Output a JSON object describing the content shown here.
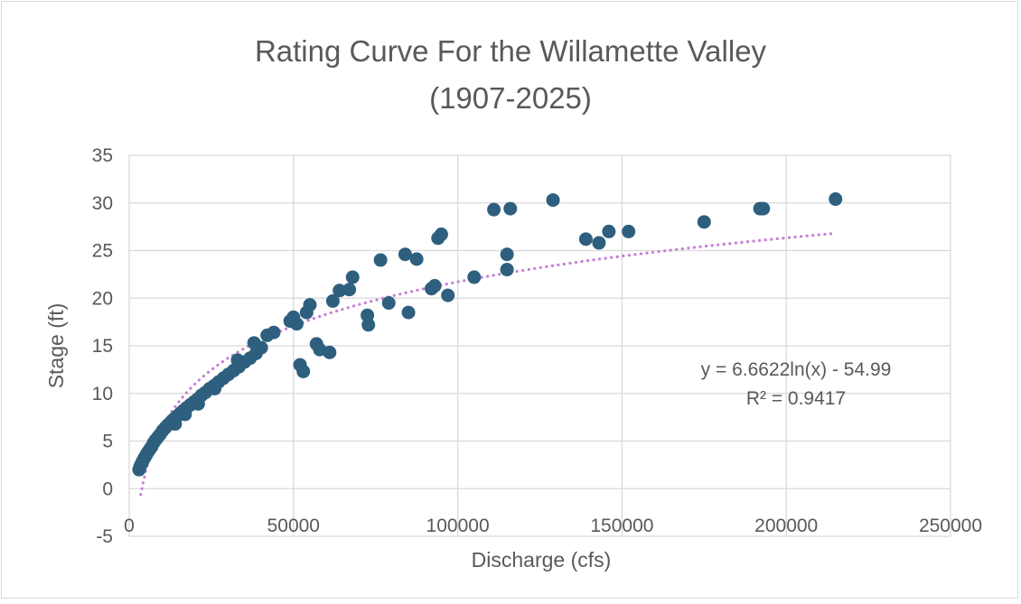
{
  "chart_data": {
    "type": "scatter",
    "title": [
      "Rating Curve For the Willamette Valley",
      "(1907-2025)"
    ],
    "xlabel": "Discharge (cfs)",
    "ylabel": "Stage (ft)",
    "xlim": [
      0,
      250000
    ],
    "ylim": [
      -5,
      35
    ],
    "xticks": [
      0,
      50000,
      100000,
      150000,
      200000,
      250000
    ],
    "yticks": [
      -5,
      0,
      5,
      10,
      15,
      20,
      25,
      30,
      35
    ],
    "grid": true,
    "legend": "none",
    "marker_color": "#2e5f7e",
    "trendline": {
      "type": "logarithmic",
      "a": 6.6622,
      "b": -54.99,
      "x_range": [
        3500,
        215000
      ],
      "color": "#c77fd6",
      "equation_label": "y = 6.6622ln(x) - 54.99",
      "r2_label": "R² = 0.9417"
    },
    "points": [
      [
        3000,
        2.0
      ],
      [
        3300,
        2.3
      ],
      [
        3700,
        2.6
      ],
      [
        4100,
        2.9
      ],
      [
        4600,
        3.2
      ],
      [
        5100,
        3.5
      ],
      [
        5600,
        3.8
      ],
      [
        6200,
        4.1
      ],
      [
        6800,
        4.4
      ],
      [
        7400,
        4.8
      ],
      [
        8000,
        5.1
      ],
      [
        8700,
        5.4
      ],
      [
        9400,
        5.7
      ],
      [
        10200,
        6.1
      ],
      [
        11000,
        6.4
      ],
      [
        11800,
        6.7
      ],
      [
        12700,
        7.0
      ],
      [
        13600,
        7.3
      ],
      [
        14500,
        7.6
      ],
      [
        15500,
        7.9
      ],
      [
        16500,
        8.2
      ],
      [
        17500,
        8.5
      ],
      [
        18600,
        8.8
      ],
      [
        19700,
        9.1
      ],
      [
        20800,
        9.4
      ],
      [
        22000,
        9.8
      ],
      [
        23200,
        10.1
      ],
      [
        24500,
        10.5
      ],
      [
        25800,
        10.8
      ],
      [
        27200,
        11.2
      ],
      [
        28700,
        11.6
      ],
      [
        30200,
        12.0
      ],
      [
        31800,
        12.4
      ],
      [
        33400,
        12.8
      ],
      [
        35100,
        13.3
      ],
      [
        36800,
        13.7
      ],
      [
        38600,
        14.2
      ],
      [
        40200,
        14.8
      ],
      [
        14000,
        6.8
      ],
      [
        17000,
        7.8
      ],
      [
        21000,
        8.9
      ],
      [
        26000,
        10.5
      ],
      [
        33000,
        13.5
      ],
      [
        38000,
        15.3
      ],
      [
        42000,
        16.1
      ],
      [
        44000,
        16.4
      ],
      [
        49000,
        17.6
      ],
      [
        50000,
        18.0
      ],
      [
        51000,
        17.3
      ],
      [
        52000,
        13.0
      ],
      [
        53000,
        12.3
      ],
      [
        54000,
        18.5
      ],
      [
        55000,
        19.3
      ],
      [
        57000,
        15.2
      ],
      [
        58000,
        14.6
      ],
      [
        61000,
        14.3
      ],
      [
        62000,
        19.7
      ],
      [
        64000,
        20.8
      ],
      [
        67000,
        20.9
      ],
      [
        68000,
        22.2
      ],
      [
        72500,
        18.2
      ],
      [
        72800,
        17.2
      ],
      [
        76500,
        24.0
      ],
      [
        79000,
        19.5
      ],
      [
        84000,
        24.6
      ],
      [
        85000,
        18.5
      ],
      [
        87500,
        24.1
      ],
      [
        92000,
        21.0
      ],
      [
        93000,
        21.3
      ],
      [
        94000,
        26.3
      ],
      [
        95000,
        26.7
      ],
      [
        97000,
        20.3
      ],
      [
        105000,
        22.2
      ],
      [
        111000,
        29.3
      ],
      [
        115000,
        24.6
      ],
      [
        115000,
        23.0
      ],
      [
        116000,
        29.4
      ],
      [
        129000,
        30.3
      ],
      [
        139000,
        26.2
      ],
      [
        143000,
        25.8
      ],
      [
        146000,
        27.0
      ],
      [
        152000,
        27.0
      ],
      [
        175000,
        28.0
      ],
      [
        192000,
        29.4
      ],
      [
        193000,
        29.4
      ],
      [
        215000,
        30.4
      ]
    ]
  }
}
